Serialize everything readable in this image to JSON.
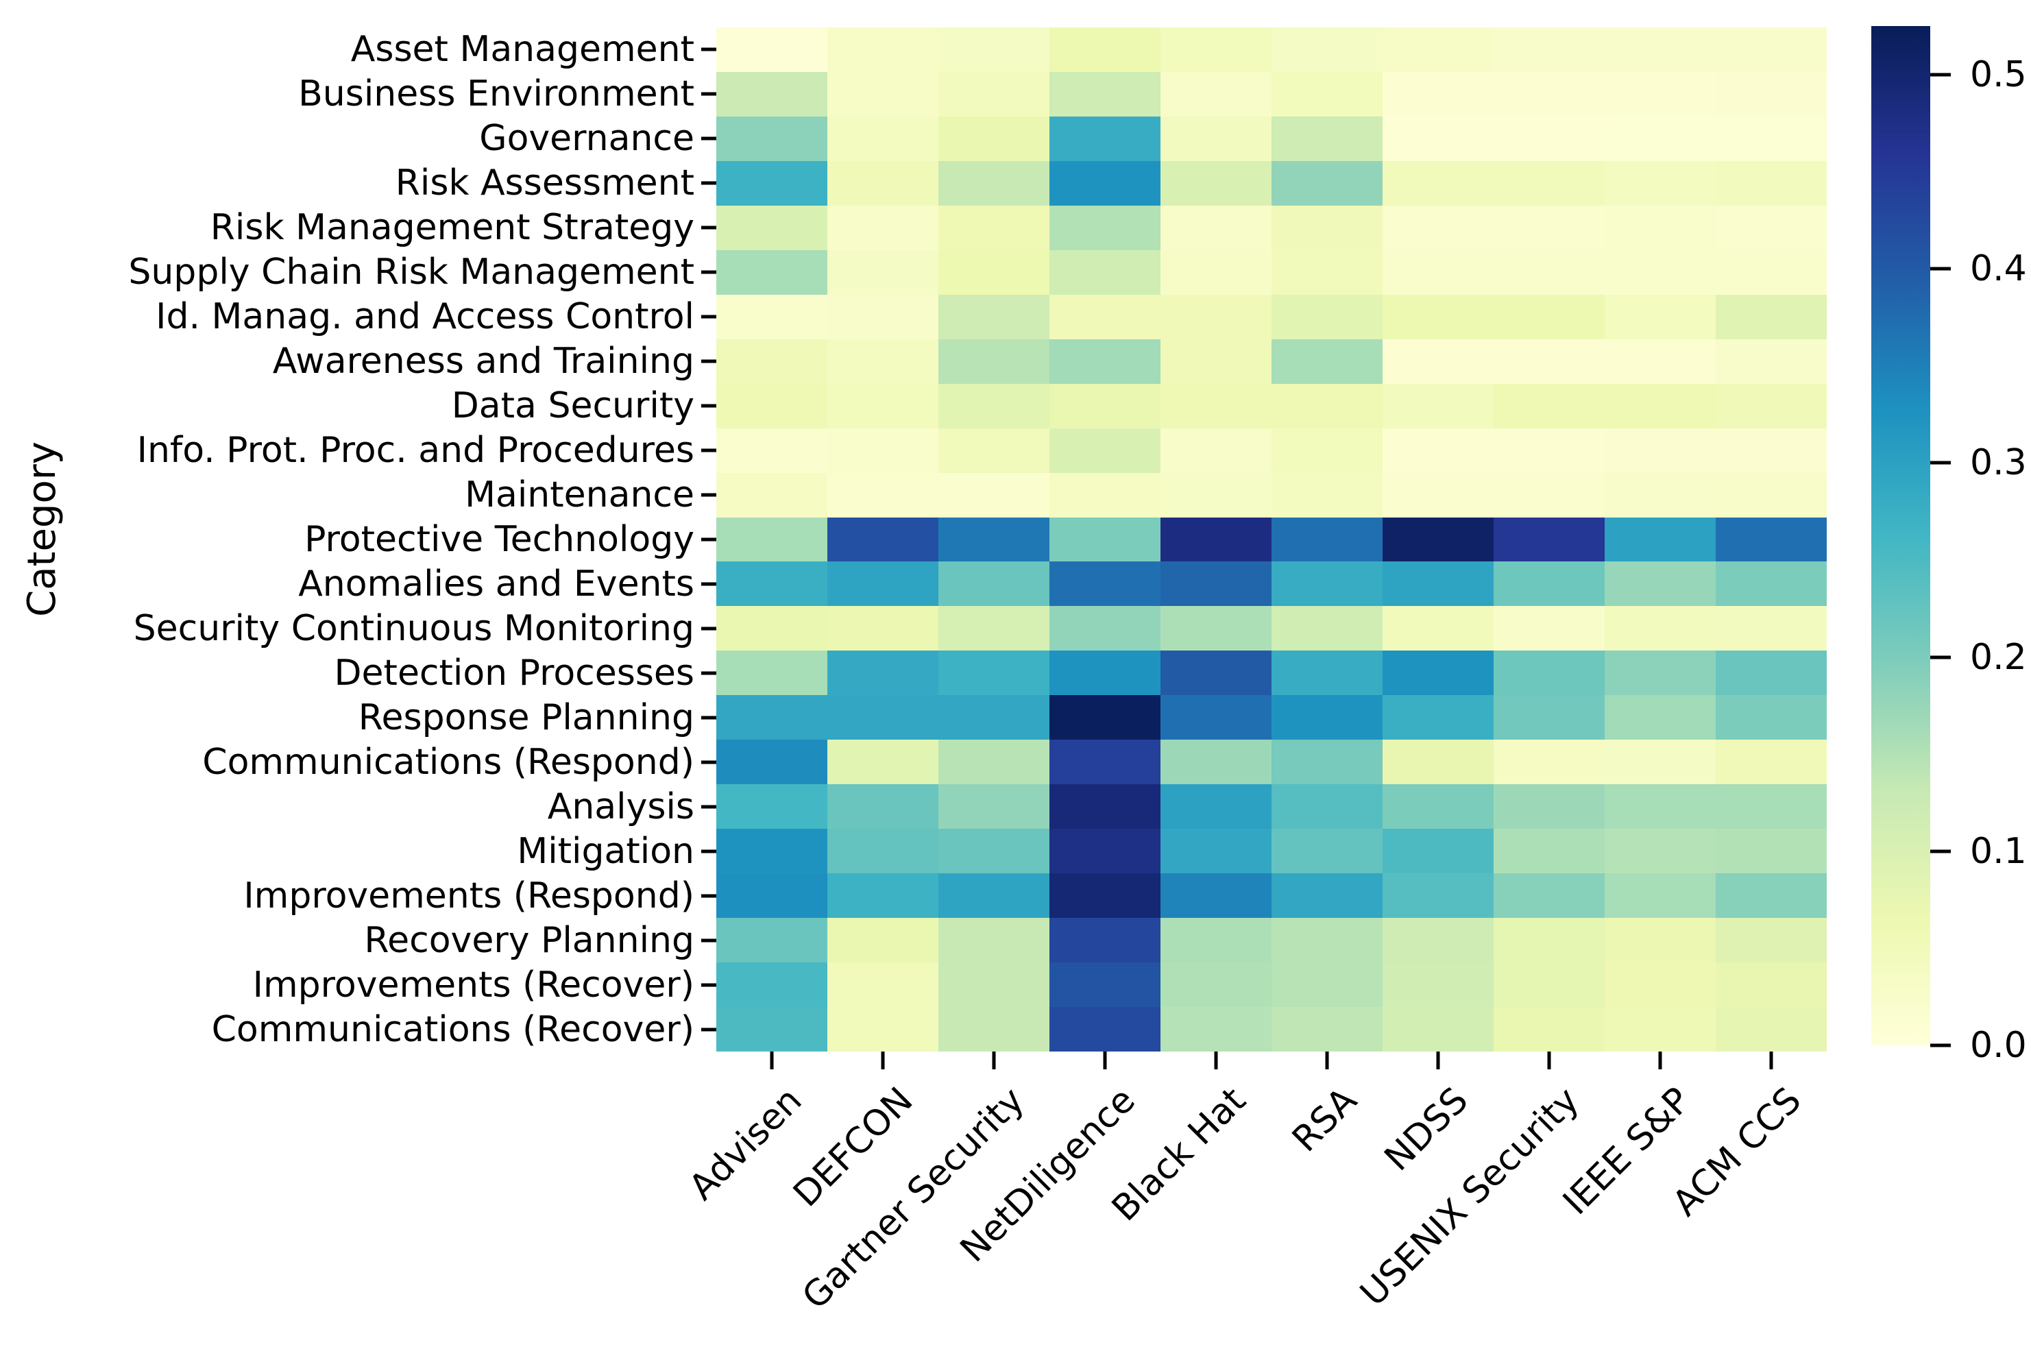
{
  "figure": {
    "background_color": "#ffffff",
    "text_color": "#000000"
  },
  "chart_data": {
    "type": "heatmap",
    "title": "",
    "xlabel": "",
    "ylabel": "Category",
    "colormap": "YlGnBu",
    "grid": false,
    "vmin": 0.0,
    "vmax": 0.525,
    "legend_position": "right-colorbar",
    "colorbar_ticks": [
      0.5,
      0.4,
      0.3,
      0.2,
      0.1,
      0.0
    ],
    "columns": [
      "Advisen",
      "DEFCON",
      "Gartner Security",
      "NetDiligence",
      "Black Hat",
      "RSA",
      "NDSS",
      "USENIX Security",
      "IEEE S&P",
      "ACM CCS"
    ],
    "rows": [
      "Asset Management",
      "Business Environment",
      "Governance",
      "Risk Assessment",
      "Risk Management Strategy",
      "Supply Chain Risk Management",
      "Id. Manag. and Access Control",
      "Awareness and Training",
      "Data Security",
      "Info. Prot. Proc. and Procedures",
      "Maintenance",
      "Protective Technology",
      "Anomalies and Events",
      "Security Continuous Monitoring",
      "Detection Processes",
      "Response Planning",
      "Communications (Respond)",
      "Analysis",
      "Mitigation",
      "Improvements (Respond)",
      "Recovery Planning",
      "Improvements (Recover)",
      "Communications (Recover)"
    ],
    "values": [
      [
        0.005,
        0.03,
        0.035,
        0.065,
        0.048,
        0.035,
        0.03,
        0.025,
        0.025,
        0.025
      ],
      [
        0.125,
        0.03,
        0.045,
        0.12,
        0.026,
        0.047,
        0.012,
        0.012,
        0.012,
        0.015
      ],
      [
        0.185,
        0.04,
        0.07,
        0.28,
        0.043,
        0.12,
        0.008,
        0.008,
        0.01,
        0.01
      ],
      [
        0.27,
        0.055,
        0.13,
        0.325,
        0.1,
        0.18,
        0.05,
        0.05,
        0.04,
        0.045
      ],
      [
        0.1,
        0.028,
        0.06,
        0.15,
        0.028,
        0.053,
        0.02,
        0.018,
        0.022,
        0.018
      ],
      [
        0.16,
        0.035,
        0.065,
        0.115,
        0.03,
        0.05,
        0.022,
        0.022,
        0.022,
        0.022
      ],
      [
        0.022,
        0.025,
        0.12,
        0.055,
        0.055,
        0.085,
        0.065,
        0.065,
        0.042,
        0.088
      ],
      [
        0.055,
        0.04,
        0.145,
        0.165,
        0.055,
        0.16,
        0.012,
        0.012,
        0.012,
        0.025
      ],
      [
        0.06,
        0.048,
        0.085,
        0.072,
        0.06,
        0.06,
        0.045,
        0.06,
        0.06,
        0.055
      ],
      [
        0.018,
        0.022,
        0.05,
        0.1,
        0.026,
        0.048,
        0.012,
        0.012,
        0.015,
        0.015
      ],
      [
        0.034,
        0.018,
        0.02,
        0.034,
        0.032,
        0.04,
        0.018,
        0.018,
        0.024,
        0.028
      ],
      [
        0.16,
        0.415,
        0.36,
        0.2,
        0.48,
        0.37,
        0.51,
        0.455,
        0.3,
        0.37
      ],
      [
        0.275,
        0.295,
        0.22,
        0.37,
        0.385,
        0.28,
        0.295,
        0.215,
        0.175,
        0.2
      ],
      [
        0.07,
        0.068,
        0.105,
        0.18,
        0.155,
        0.115,
        0.05,
        0.027,
        0.045,
        0.043
      ],
      [
        0.16,
        0.285,
        0.27,
        0.325,
        0.4,
        0.28,
        0.325,
        0.215,
        0.185,
        0.22
      ],
      [
        0.29,
        0.29,
        0.29,
        0.52,
        0.37,
        0.325,
        0.275,
        0.21,
        0.165,
        0.2
      ],
      [
        0.335,
        0.085,
        0.145,
        0.44,
        0.17,
        0.205,
        0.075,
        0.038,
        0.035,
        0.055
      ],
      [
        0.26,
        0.22,
        0.18,
        0.49,
        0.3,
        0.24,
        0.2,
        0.17,
        0.16,
        0.16
      ],
      [
        0.325,
        0.225,
        0.22,
        0.475,
        0.29,
        0.225,
        0.25,
        0.155,
        0.148,
        0.15
      ],
      [
        0.33,
        0.27,
        0.295,
        0.495,
        0.345,
        0.29,
        0.24,
        0.19,
        0.16,
        0.19
      ],
      [
        0.22,
        0.07,
        0.13,
        0.43,
        0.155,
        0.145,
        0.12,
        0.08,
        0.068,
        0.09
      ],
      [
        0.255,
        0.05,
        0.13,
        0.41,
        0.153,
        0.145,
        0.115,
        0.08,
        0.063,
        0.075
      ],
      [
        0.25,
        0.05,
        0.13,
        0.425,
        0.148,
        0.138,
        0.11,
        0.07,
        0.058,
        0.078
      ]
    ]
  }
}
